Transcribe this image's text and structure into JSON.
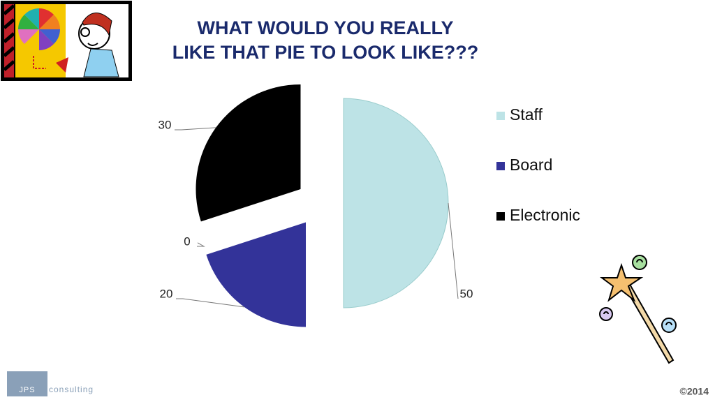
{
  "chart_data": {
    "type": "pie",
    "title_lines": [
      "WHAT WOULD YOU REALLY",
      "LIKE THAT PIE TO LOOK LIKE???"
    ],
    "categories": [
      "Staff",
      "Board",
      null,
      "Electronic"
    ],
    "values": [
      50,
      20,
      0,
      30
    ],
    "colors": [
      "#bde3e6",
      "#333399",
      "#ffffff",
      "#000000"
    ],
    "legend": "right"
  },
  "logo": {
    "name": "JPS",
    "tagline": "consulting"
  },
  "footer": "©2014"
}
